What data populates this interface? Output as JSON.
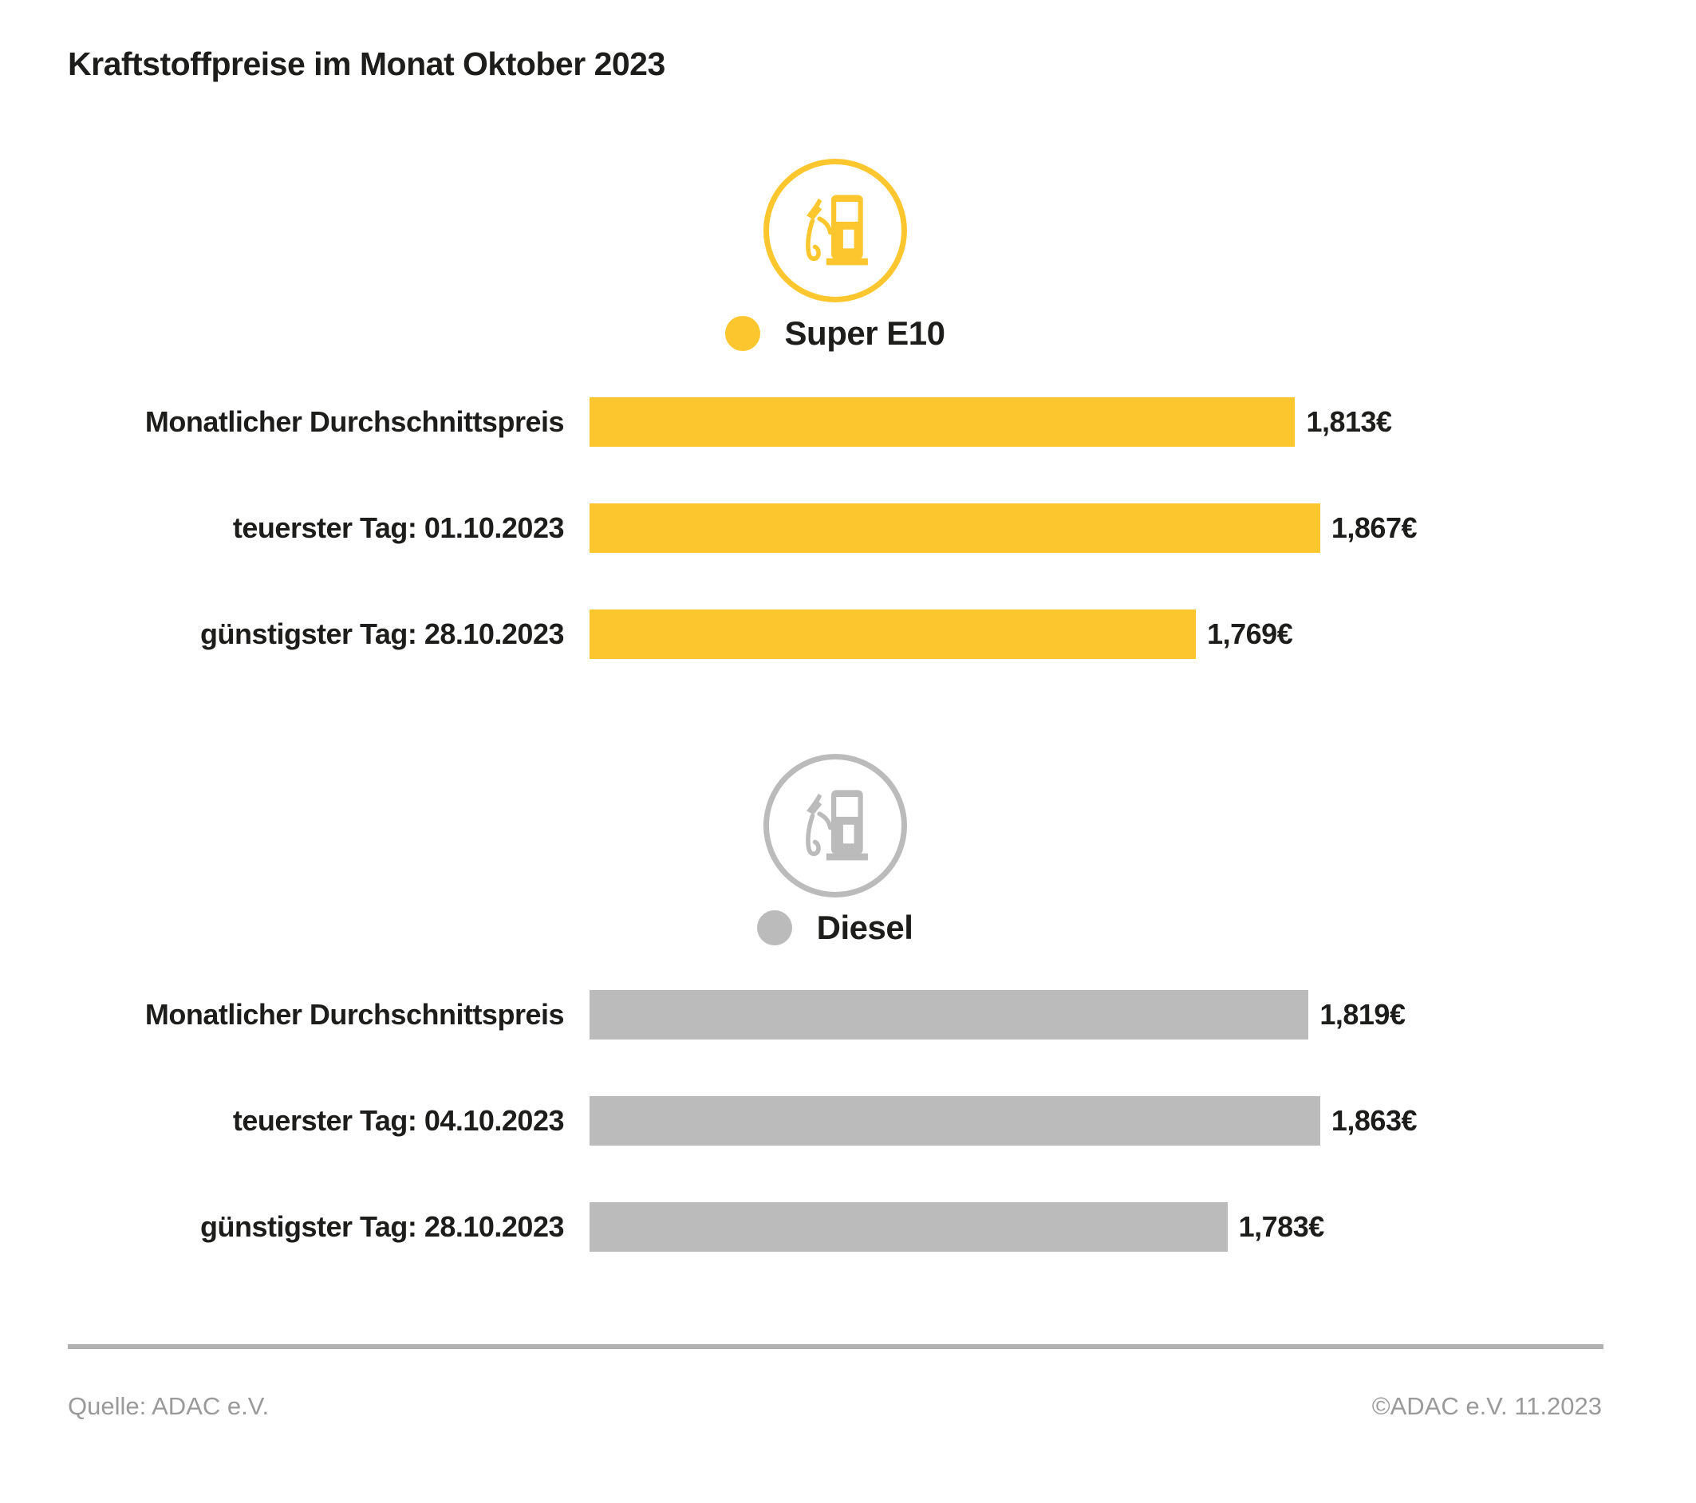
{
  "title": "Kraftstoffpreise im Monat Oktober 2023",
  "colors": {
    "super_e10": "#FCC72E",
    "diesel": "#BBBBBB",
    "text": "#1D1D1B",
    "footer_text": "#9A9A9A",
    "rule": "#B1B1B1"
  },
  "chart_data": {
    "type": "bar",
    "orientation": "horizontal",
    "title": "Kraftstoffpreise im Monat Oktober 2023",
    "value_unit": "EUR pro Liter",
    "axis_min": 1.5,
    "axis_max": 1.867,
    "grid": false,
    "legend_position": "above-each-section",
    "sections": [
      {
        "name": "Super E10",
        "legend_label": "Super E10",
        "color": "#FCC72E",
        "icon": "fuel-pump-icon",
        "rows": [
          {
            "label": "Monatlicher Durchschnittspreis",
            "value": 1.813,
            "display": "1,813€"
          },
          {
            "label": "teuerster Tag: 01.10.2023",
            "value": 1.867,
            "display": "1,867€"
          },
          {
            "label": "günstigster Tag: 28.10.2023",
            "value": 1.769,
            "display": "1,769€"
          }
        ]
      },
      {
        "name": "Diesel",
        "legend_label": "Diesel",
        "color": "#BBBBBB",
        "icon": "fuel-pump-icon",
        "rows": [
          {
            "label": "Monatlicher Durchschnittspreis",
            "value": 1.819,
            "display": "1,819€"
          },
          {
            "label": "teuerster Tag: 04.10.2023",
            "value": 1.863,
            "display": "1,863€"
          },
          {
            "label": "günstigster Tag: 28.10.2023",
            "value": 1.783,
            "display": "1,783€"
          }
        ]
      }
    ]
  },
  "footer": {
    "source": "Quelle: ADAC e.V.",
    "copyright": "©ADAC e.V. 11.2023"
  }
}
